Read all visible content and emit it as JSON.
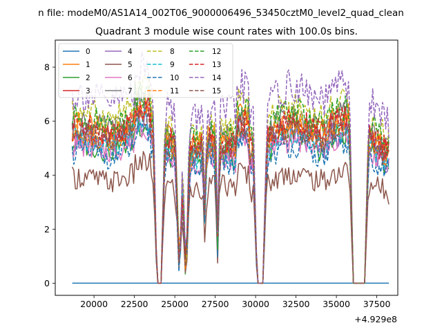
{
  "chart_data": {
    "type": "line",
    "suptitle": "n file: modeM0/AS1A14_002T06_9000006496_53450cztM0_level2_quad_clean",
    "title": "Quadrant 3 module wise count rates with 100.0s bins.",
    "xlabel": "",
    "ylabel": "",
    "x_offset_label": "+4.929e8",
    "xlim": [
      17600,
      38800
    ],
    "ylim": [
      -0.45,
      9.0
    ],
    "xticks": [
      20000,
      22500,
      25000,
      27500,
      30000,
      32500,
      35000,
      37500
    ],
    "xtick_labels": [
      "20000",
      "22500",
      "25000",
      "27500",
      "30000",
      "32500",
      "35000",
      "37500"
    ],
    "yticks": [
      0,
      2,
      4,
      6,
      8
    ],
    "ytick_labels": [
      "0",
      "2",
      "4",
      "6",
      "8"
    ],
    "x_range": [
      18650,
      38250
    ],
    "bin_size": 100,
    "gaps": [
      [
        23900,
        24150
      ],
      [
        30100,
        30450
      ],
      [
        36050,
        36750
      ]
    ],
    "dips": [
      {
        "center": 25280,
        "depth": 0.85,
        "width": 160
      },
      {
        "center": 25680,
        "depth": 0.85,
        "width": 160
      },
      {
        "center": 26850,
        "depth": 0.45,
        "width": 90
      },
      {
        "center": 27650,
        "depth": 0.7,
        "width": 90
      }
    ],
    "grid": false,
    "legend": {
      "location": "top-left",
      "columns": 4
    },
    "series": [
      {
        "name": "0",
        "color": "#1f77b4",
        "dash": "solid",
        "mean": 0.0,
        "amplitude": 0.0,
        "constant": true
      },
      {
        "name": "1",
        "color": "#ff7f0e",
        "dash": "solid",
        "mean": 5.5,
        "amplitude": 0.55
      },
      {
        "name": "2",
        "color": "#2ca02c",
        "dash": "solid",
        "mean": 4.9,
        "amplitude": 0.5
      },
      {
        "name": "3",
        "color": "#d62728",
        "dash": "solid",
        "mean": 5.3,
        "amplitude": 0.5
      },
      {
        "name": "4",
        "color": "#9467bd",
        "dash": "solid",
        "mean": 5.0,
        "amplitude": 0.5
      },
      {
        "name": "5",
        "color": "#8c564b",
        "dash": "solid",
        "mean": 3.7,
        "amplitude": 0.45
      },
      {
        "name": "6",
        "color": "#e377c2",
        "dash": "solid",
        "mean": 4.8,
        "amplitude": 0.45
      },
      {
        "name": "7",
        "color": "#7f7f7f",
        "dash": "solid",
        "mean": 5.6,
        "amplitude": 0.5
      },
      {
        "name": "8",
        "color": "#bcbd22",
        "dash": "dashed",
        "mean": 6.0,
        "amplitude": 0.55
      },
      {
        "name": "9",
        "color": "#17becf",
        "dash": "dashed",
        "mean": 5.0,
        "amplitude": 0.45
      },
      {
        "name": "10",
        "color": "#1f77b4",
        "dash": "dashed",
        "mean": 4.6,
        "amplitude": 0.45
      },
      {
        "name": "11",
        "color": "#ff7f0e",
        "dash": "dashed",
        "mean": 5.3,
        "amplitude": 0.5
      },
      {
        "name": "12",
        "color": "#2ca02c",
        "dash": "dashed",
        "mean": 5.8,
        "amplitude": 0.5
      },
      {
        "name": "13",
        "color": "#d62728",
        "dash": "dashed",
        "mean": 5.5,
        "amplitude": 0.5
      },
      {
        "name": "14",
        "color": "#9467bd",
        "dash": "dashed",
        "mean": 6.6,
        "amplitude": 0.65
      },
      {
        "name": "15",
        "color": "#8c564b",
        "dash": "dashed",
        "mean": 5.2,
        "amplitude": 0.5
      }
    ]
  }
}
